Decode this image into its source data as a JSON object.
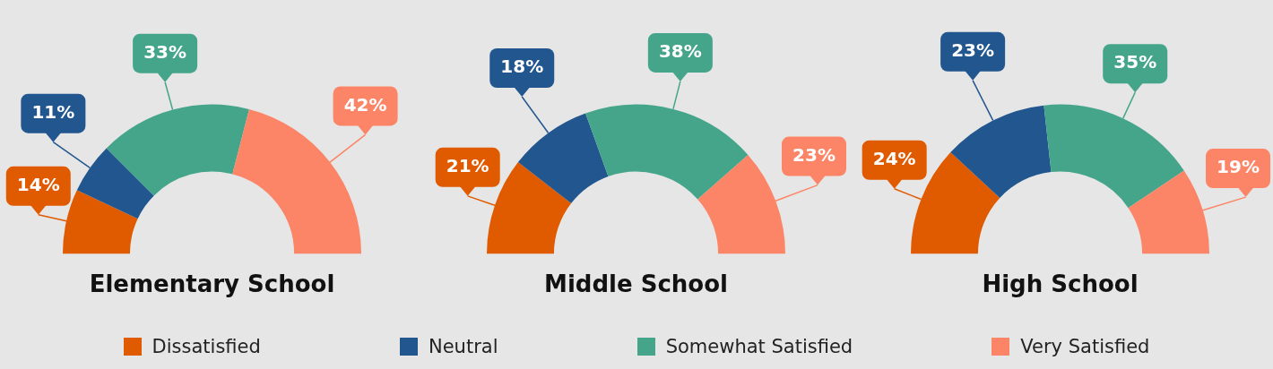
{
  "chart_data": [
    {
      "type": "donut",
      "title": "Elementary School",
      "categories": [
        "Dissatisfied",
        "Neutral",
        "Somewhat Satisfied",
        "Very Satisfied"
      ],
      "values": [
        14,
        11,
        33,
        42
      ],
      "value_labels": [
        "14%",
        "11%",
        "33%",
        "42%"
      ],
      "colors": [
        "#e05a00",
        "#22568f",
        "#45a58a",
        "#fb8566"
      ],
      "legend": "bottom"
    },
    {
      "type": "donut",
      "title": "Middle School",
      "categories": [
        null,
        null,
        null,
        null
      ],
      "values": [
        21,
        18,
        38,
        23
      ],
      "value_labels": [
        "21%",
        "18%",
        "38%",
        "23%"
      ],
      "colors": [
        "#e05a00",
        "#22568f",
        "#45a58a",
        "#fb8566"
      ]
    },
    {
      "type": "donut",
      "title": "High School",
      "categories": [
        null,
        null,
        null,
        null
      ],
      "values": [
        24,
        23,
        35,
        19
      ],
      "value_labels": [
        "24%",
        "23%",
        "35%",
        "19%"
      ],
      "colors": [
        "#e05a00",
        "#22568f",
        "#45a58a",
        "#fb8566"
      ]
    }
  ]
}
